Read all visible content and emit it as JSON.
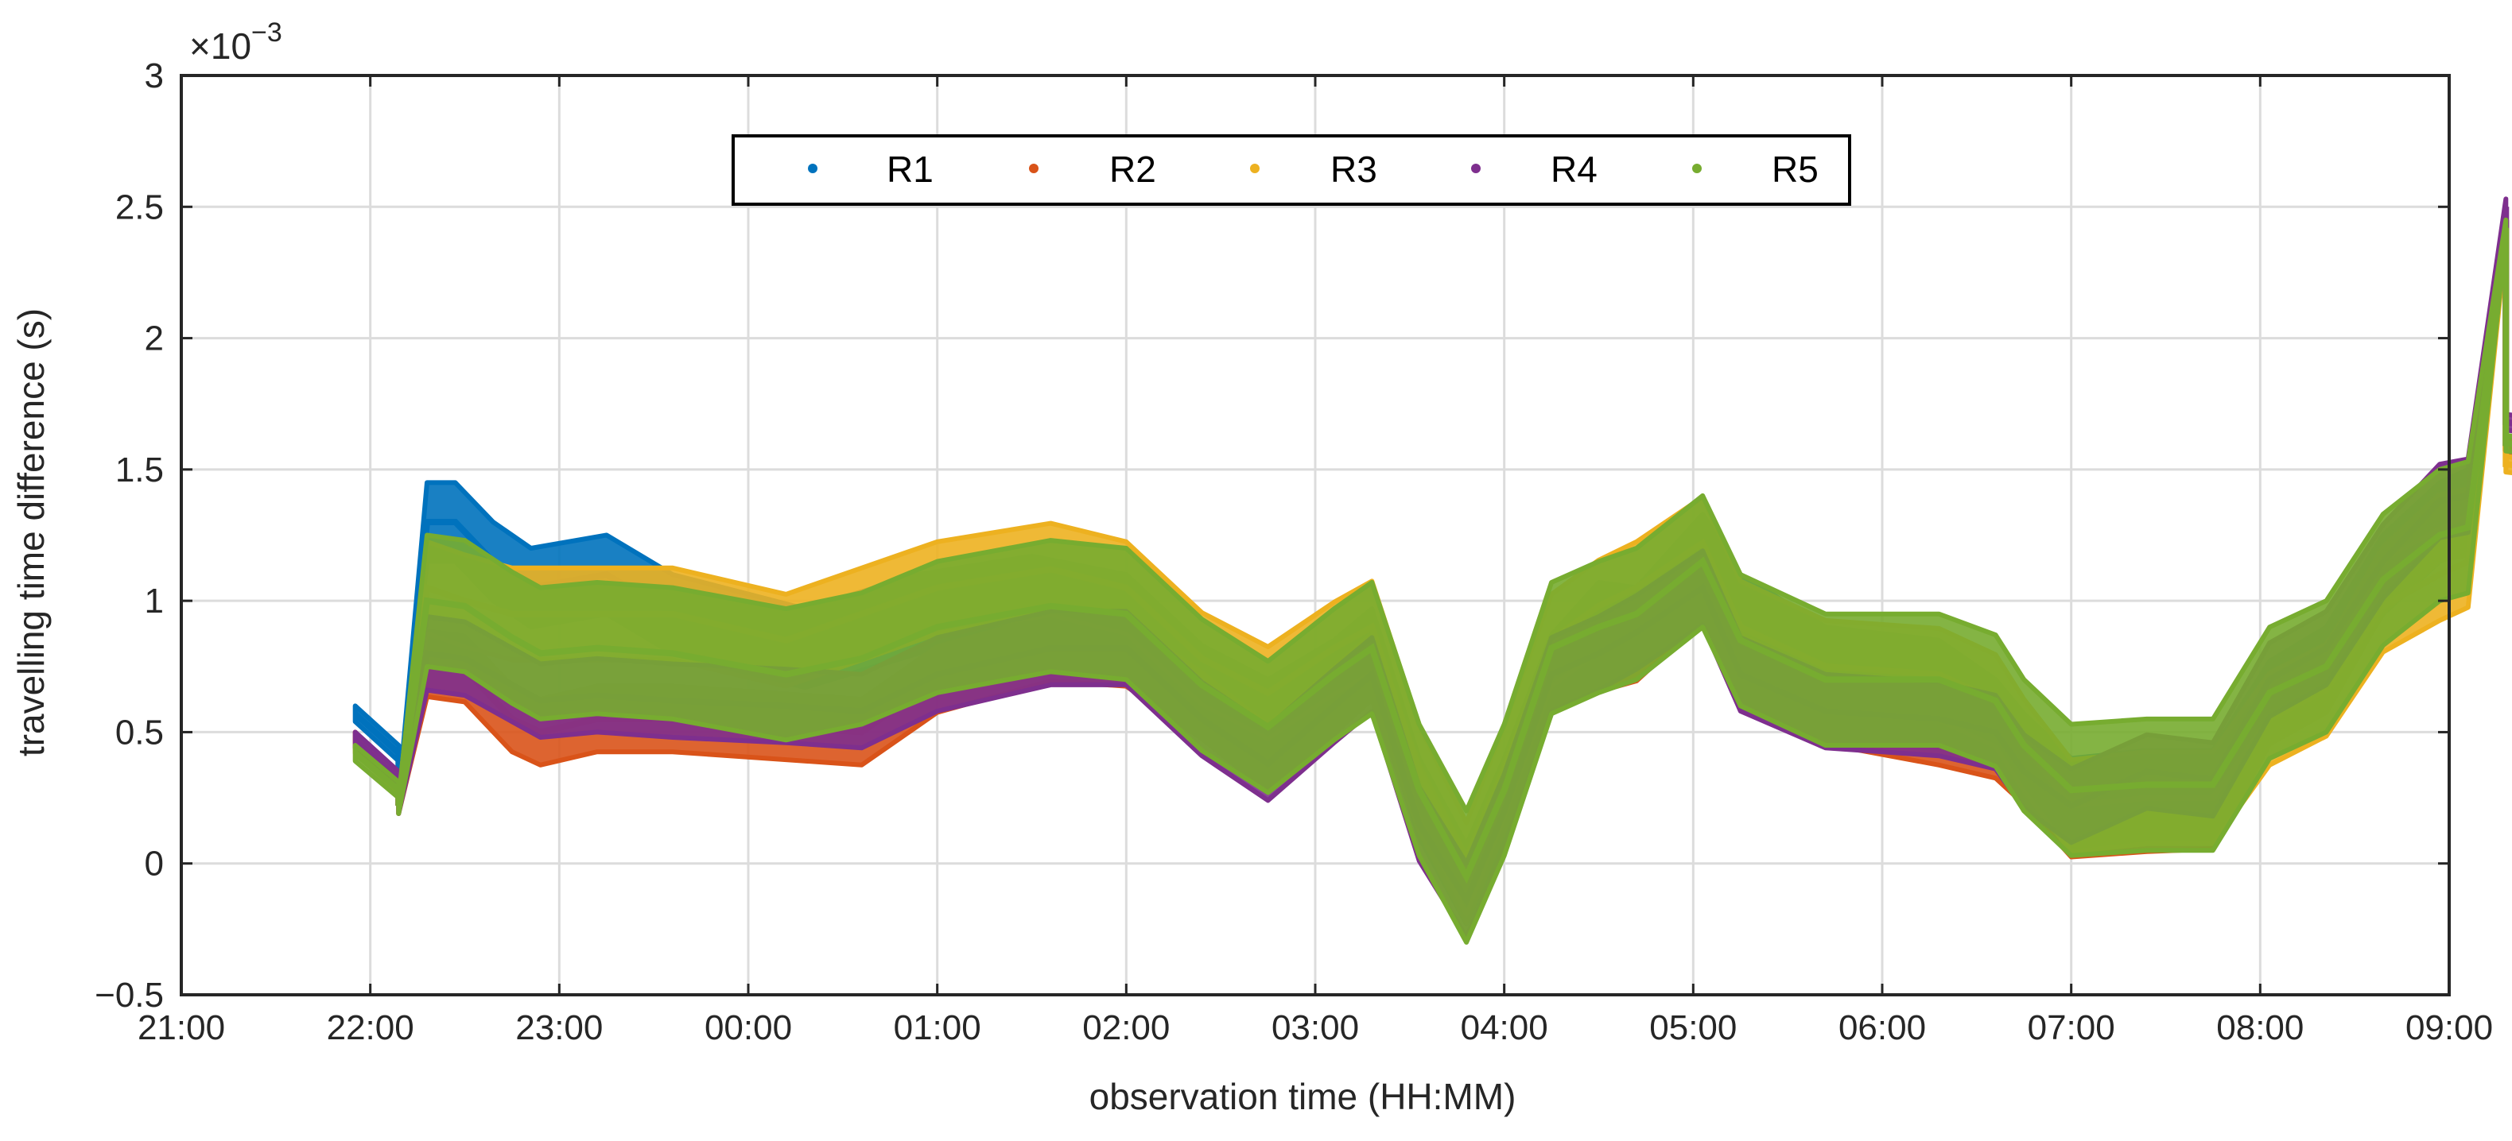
{
  "chart_data": {
    "type": "line",
    "xlabel": "observation time (HH:MM)",
    "ylabel": "travelling time difference (s)",
    "y_exponent_base": "×10",
    "y_exponent_power": "−3",
    "x_ticks": [
      "21:00",
      "22:00",
      "23:00",
      "00:00",
      "01:00",
      "02:00",
      "03:00",
      "04:00",
      "05:00",
      "06:00",
      "07:00",
      "08:00",
      "09:00"
    ],
    "y_ticks": [
      "−0.5",
      "0",
      "0.5",
      "1",
      "1.5",
      "2",
      "2.5",
      "3"
    ],
    "xlim_hours": [
      0,
      12
    ],
    "ylim_e3": [
      -0.5,
      3
    ],
    "grid": true,
    "legend_position": "top-center",
    "series": [
      {
        "name": "R1",
        "color": "#0072BD",
        "band_width_e3": 0.3,
        "points": [
          [
            0.92,
            0.57
          ],
          [
            1.15,
            0.42
          ],
          [
            1.15,
            0.22
          ],
          [
            1.3,
            1.3
          ],
          [
            1.45,
            1.3
          ],
          [
            1.65,
            1.15
          ],
          [
            1.85,
            1.05
          ],
          [
            2.25,
            1.1
          ],
          [
            2.6,
            0.95
          ],
          [
            3.3,
            0.82
          ],
          [
            3.9,
            0.95
          ],
          [
            4.5,
            1.02
          ],
          [
            5.0,
            0.95
          ],
          [
            5.4,
            0.68
          ],
          [
            5.75,
            0.55
          ],
          [
            6.1,
            0.7
          ],
          [
            6.3,
            0.82
          ],
          [
            6.55,
            0.25
          ],
          [
            6.8,
            -0.08
          ],
          [
            7.0,
            0.25
          ],
          [
            7.25,
            0.72
          ],
          [
            7.5,
            0.92
          ],
          [
            7.7,
            0.9
          ],
          [
            8.05,
            1.18
          ],
          [
            8.25,
            0.95
          ],
          [
            8.7,
            0.75
          ],
          [
            9.3,
            0.7
          ],
          [
            9.6,
            0.55
          ],
          [
            9.75,
            0.42
          ],
          [
            10.0,
            0.25
          ],
          [
            10.4,
            0.28
          ],
          [
            10.75,
            0.28
          ],
          [
            11.05,
            0.62
          ],
          [
            11.35,
            0.75
          ],
          [
            11.65,
            1.1
          ],
          [
            11.95,
            1.3
          ],
          [
            12.1,
            1.35
          ],
          [
            12.3,
            2.45
          ],
          [
            12.3,
            1.6
          ],
          [
            12.95,
            1.52
          ]
        ]
      },
      {
        "name": "R2",
        "color": "#D95319",
        "band_width_e3": 0.25,
        "points": [
          [
            0.92,
            0.47
          ],
          [
            1.15,
            0.3
          ],
          [
            1.15,
            0.22
          ],
          [
            1.3,
            0.76
          ],
          [
            1.5,
            0.74
          ],
          [
            1.75,
            0.55
          ],
          [
            1.9,
            0.5
          ],
          [
            2.2,
            0.55
          ],
          [
            2.6,
            0.55
          ],
          [
            3.2,
            0.52
          ],
          [
            3.6,
            0.5
          ],
          [
            4.0,
            0.7
          ],
          [
            4.6,
            0.82
          ],
          [
            5.0,
            0.8
          ],
          [
            5.4,
            0.6
          ],
          [
            5.75,
            0.4
          ],
          [
            6.1,
            0.62
          ],
          [
            6.3,
            0.75
          ],
          [
            6.55,
            0.25
          ],
          [
            6.8,
            -0.1
          ],
          [
            7.0,
            0.25
          ],
          [
            7.25,
            0.7
          ],
          [
            7.5,
            0.78
          ],
          [
            7.7,
            0.82
          ],
          [
            8.05,
            1.05
          ],
          [
            8.25,
            0.75
          ],
          [
            8.7,
            0.58
          ],
          [
            9.3,
            0.5
          ],
          [
            9.6,
            0.45
          ],
          [
            9.75,
            0.35
          ],
          [
            10.0,
            0.15
          ],
          [
            10.4,
            0.17
          ],
          [
            10.75,
            0.18
          ],
          [
            11.05,
            0.58
          ],
          [
            11.35,
            0.7
          ],
          [
            11.65,
            1.08
          ],
          [
            11.95,
            1.28
          ],
          [
            12.1,
            1.3
          ],
          [
            12.3,
            2.45
          ],
          [
            12.3,
            1.58
          ],
          [
            12.95,
            1.5
          ]
        ]
      },
      {
        "name": "R3",
        "color": "#EDB120",
        "band_width_e3": 0.35,
        "points": [
          [
            0.92,
            0.45
          ],
          [
            1.15,
            0.3
          ],
          [
            1.15,
            0.22
          ],
          [
            1.3,
            1.05
          ],
          [
            1.5,
            1.0
          ],
          [
            1.75,
            0.95
          ],
          [
            1.9,
            0.95
          ],
          [
            2.2,
            0.95
          ],
          [
            2.6,
            0.95
          ],
          [
            3.2,
            0.85
          ],
          [
            3.6,
            0.95
          ],
          [
            4.0,
            1.05
          ],
          [
            4.6,
            1.12
          ],
          [
            5.0,
            1.05
          ],
          [
            5.4,
            0.78
          ],
          [
            5.75,
            0.65
          ],
          [
            6.1,
            0.82
          ],
          [
            6.3,
            0.9
          ],
          [
            6.55,
            0.35
          ],
          [
            6.8,
            -0.02
          ],
          [
            7.0,
            0.35
          ],
          [
            7.25,
            0.85
          ],
          [
            7.5,
            0.98
          ],
          [
            7.7,
            1.05
          ],
          [
            8.05,
            1.22
          ],
          [
            8.25,
            0.9
          ],
          [
            8.7,
            0.75
          ],
          [
            9.3,
            0.72
          ],
          [
            9.6,
            0.62
          ],
          [
            9.75,
            0.45
          ],
          [
            10.0,
            0.22
          ],
          [
            10.4,
            0.25
          ],
          [
            10.75,
            0.25
          ],
          [
            11.05,
            0.55
          ],
          [
            11.35,
            0.66
          ],
          [
            11.65,
            0.98
          ],
          [
            11.95,
            1.1
          ],
          [
            12.1,
            1.15
          ],
          [
            12.3,
            2.4
          ],
          [
            12.3,
            1.52
          ],
          [
            12.95,
            1.47
          ]
        ]
      },
      {
        "name": "R4",
        "color": "#7E2F8E",
        "band_width_e3": 0.28,
        "points": [
          [
            0.92,
            0.47
          ],
          [
            1.15,
            0.32
          ],
          [
            1.15,
            0.22
          ],
          [
            1.3,
            0.8
          ],
          [
            1.5,
            0.78
          ],
          [
            1.75,
            0.68
          ],
          [
            1.9,
            0.62
          ],
          [
            2.2,
            0.64
          ],
          [
            2.6,
            0.62
          ],
          [
            3.2,
            0.6
          ],
          [
            3.6,
            0.58
          ],
          [
            4.0,
            0.72
          ],
          [
            4.6,
            0.82
          ],
          [
            5.0,
            0.82
          ],
          [
            5.4,
            0.55
          ],
          [
            5.75,
            0.38
          ],
          [
            6.1,
            0.6
          ],
          [
            6.3,
            0.72
          ],
          [
            6.55,
            0.15
          ],
          [
            6.8,
            -0.14
          ],
          [
            7.0,
            0.2
          ],
          [
            7.25,
            0.72
          ],
          [
            7.5,
            0.8
          ],
          [
            7.7,
            0.88
          ],
          [
            8.05,
            1.05
          ],
          [
            8.25,
            0.72
          ],
          [
            8.7,
            0.58
          ],
          [
            9.3,
            0.55
          ],
          [
            9.6,
            0.5
          ],
          [
            9.75,
            0.35
          ],
          [
            10.0,
            0.22
          ],
          [
            10.4,
            0.35
          ],
          [
            10.75,
            0.32
          ],
          [
            11.05,
            0.7
          ],
          [
            11.35,
            0.82
          ],
          [
            11.65,
            1.15
          ],
          [
            11.95,
            1.38
          ],
          [
            12.1,
            1.4
          ],
          [
            12.3,
            2.5
          ],
          [
            12.3,
            1.68
          ],
          [
            12.95,
            1.62
          ]
        ]
      },
      {
        "name": "R5",
        "color": "#77AC30",
        "band_width_e3": 0.5,
        "points": [
          [
            0.92,
            0.42
          ],
          [
            1.15,
            0.28
          ],
          [
            1.15,
            0.22
          ],
          [
            1.3,
            1.0
          ],
          [
            1.5,
            0.98
          ],
          [
            1.75,
            0.86
          ],
          [
            1.9,
            0.8
          ],
          [
            2.2,
            0.82
          ],
          [
            2.6,
            0.8
          ],
          [
            3.2,
            0.72
          ],
          [
            3.6,
            0.78
          ],
          [
            4.0,
            0.9
          ],
          [
            4.6,
            0.98
          ],
          [
            5.0,
            0.95
          ],
          [
            5.4,
            0.68
          ],
          [
            5.75,
            0.52
          ],
          [
            6.1,
            0.72
          ],
          [
            6.3,
            0.82
          ],
          [
            6.55,
            0.28
          ],
          [
            6.8,
            -0.05
          ],
          [
            7.0,
            0.28
          ],
          [
            7.25,
            0.82
          ],
          [
            7.5,
            0.9
          ],
          [
            7.7,
            0.95
          ],
          [
            8.05,
            1.15
          ],
          [
            8.25,
            0.85
          ],
          [
            8.7,
            0.7
          ],
          [
            9.3,
            0.7
          ],
          [
            9.6,
            0.62
          ],
          [
            9.75,
            0.45
          ],
          [
            10.0,
            0.28
          ],
          [
            10.4,
            0.3
          ],
          [
            10.75,
            0.3
          ],
          [
            11.05,
            0.65
          ],
          [
            11.35,
            0.75
          ],
          [
            11.65,
            1.08
          ],
          [
            11.95,
            1.25
          ],
          [
            12.1,
            1.28
          ],
          [
            12.3,
            2.42
          ],
          [
            12.3,
            1.6
          ],
          [
            12.95,
            1.55
          ]
        ]
      }
    ]
  }
}
